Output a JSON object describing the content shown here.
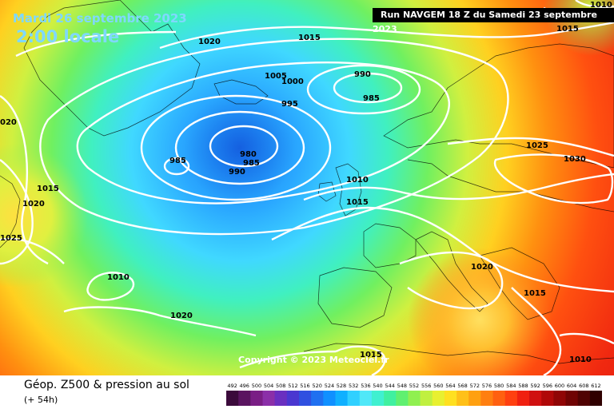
{
  "header": {
    "date": "Mardi 26 septembre 2023",
    "local_time": "2:00 locale",
    "run": "Run NAVGEM 18 Z du Samedi 23 septembre 2023"
  },
  "copyright": "Copyright © 2023 Meteociel.fr",
  "footer": {
    "title": "Géop. Z500 & pression au sol",
    "subtitle": "(+ 54h)"
  },
  "legend": {
    "values": [
      "492",
      "496",
      "500",
      "504",
      "508",
      "512",
      "516",
      "520",
      "524",
      "528",
      "532",
      "536",
      "540",
      "544",
      "548",
      "552",
      "556",
      "560",
      "564",
      "568",
      "572",
      "576",
      "580",
      "584",
      "588",
      "592",
      "596",
      "600",
      "604",
      "608",
      "612"
    ],
    "colors": [
      "#3b0a3b",
      "#5a1460",
      "#7a1e85",
      "#8b2fa8",
      "#6a2fc0",
      "#4a37d0",
      "#3050e0",
      "#2070f0",
      "#1090ff",
      "#10b0ff",
      "#30d0ff",
      "#50e8f8",
      "#40f0d0",
      "#40f0a0",
      "#60f070",
      "#90f050",
      "#c0f040",
      "#e8f030",
      "#ffe020",
      "#ffc018",
      "#ffa010",
      "#ff7f10",
      "#ff6010",
      "#ff4010",
      "#f02010",
      "#d01010",
      "#b00808",
      "#900505",
      "#700303",
      "#500202",
      "#300000"
    ]
  },
  "isobars": [
    {
      "id": "l1020a",
      "text": "1020"
    },
    {
      "id": "l1015a",
      "text": "1015"
    },
    {
      "id": "l1005",
      "text": "1005"
    },
    {
      "id": "l1000",
      "text": "1000"
    },
    {
      "id": "l990a",
      "text": "990"
    },
    {
      "id": "l985a",
      "text": "985"
    },
    {
      "id": "l995",
      "text": "995"
    },
    {
      "id": "l980",
      "text": "980"
    },
    {
      "id": "l985b",
      "text": "985"
    },
    {
      "id": "l985c",
      "text": "985"
    },
    {
      "id": "l990b",
      "text": "990"
    },
    {
      "id": "l1010a",
      "text": "1010"
    },
    {
      "id": "l1015b",
      "text": "1015"
    },
    {
      "id": "l1025a",
      "text": "1025"
    },
    {
      "id": "l1030",
      "text": "1030"
    },
    {
      "id": "l1020b",
      "text": "1020"
    },
    {
      "id": "l1015c",
      "text": "1015"
    },
    {
      "id": "l1010b",
      "text": "1010"
    },
    {
      "id": "l1010c",
      "text": "1010"
    },
    {
      "id": "l1020c",
      "text": "1020"
    },
    {
      "id": "l1015d",
      "text": "1015"
    },
    {
      "id": "l1020d",
      "text": "1020"
    },
    {
      "id": "l1015e",
      "text": "1015"
    },
    {
      "id": "l1025b",
      "text": "1025"
    },
    {
      "id": "l1010d",
      "text": "1010"
    },
    {
      "id": "l1015f",
      "text": "1015"
    },
    {
      "id": "l020",
      "text": "020"
    }
  ]
}
